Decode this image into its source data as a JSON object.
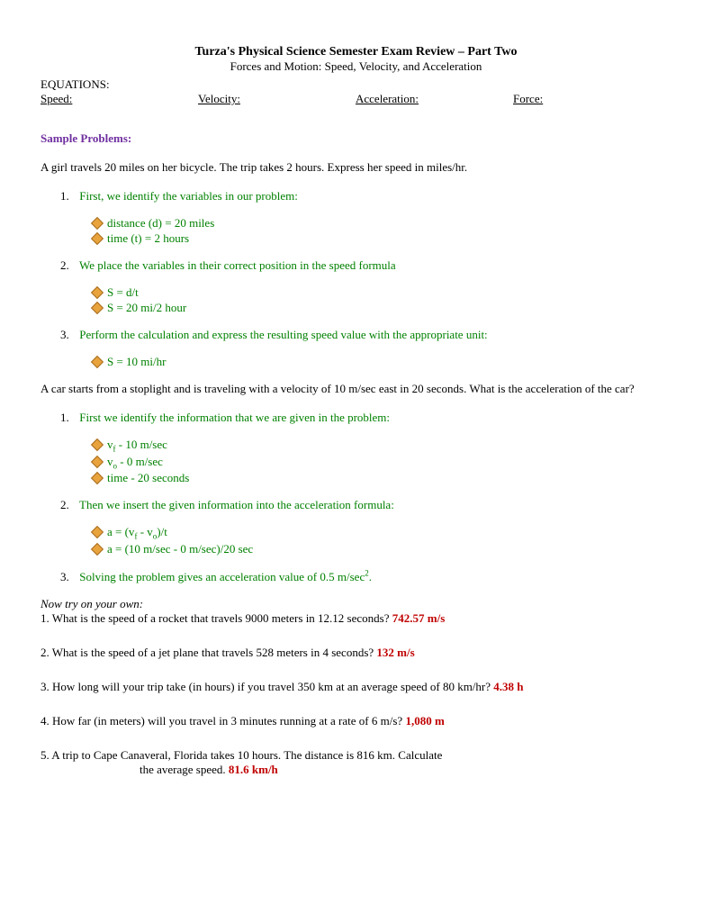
{
  "header": {
    "title": "Turza's Physical Science Semester Exam Review – Part Two",
    "subtitle": "Forces and Motion: Speed, Velocity, and Acceleration"
  },
  "equations": {
    "label": "EQUATIONS:",
    "cols": [
      "Speed:",
      "Velocity:",
      "Acceleration:",
      "Force:"
    ]
  },
  "sample_header": "Sample Problems:",
  "problem1": {
    "text": "A girl travels 20 miles on her bicycle. The trip takes 2 hours.  Express her speed in miles/hr.",
    "steps": [
      {
        "num": "1.",
        "text": "First, we identify the variables in our problem:",
        "bullets": [
          "distance (d) = 20 miles",
          "time (t) = 2 hours"
        ]
      },
      {
        "num": "2.",
        "text": "We place the variables in their correct position in the speed formula",
        "bullets": [
          "S = d/t",
          "S = 20 mi/2 hour"
        ]
      },
      {
        "num": "3.",
        "text": "Perform the calculation and express the resulting speed value with the appropriate unit:",
        "bullets": [
          "S = 10 mi/hr"
        ]
      }
    ]
  },
  "problem2": {
    "text": "A car starts from a stoplight and is traveling with a velocity of 10 m/sec east in 20 seconds.  What is the acceleration of the car?",
    "steps": [
      {
        "num": "1.",
        "text": "First we identify the information that we are given in the problem:",
        "bullets_html": [
          "v<sub>f</sub> - 10 m/sec",
          "v<sub>o</sub> - 0 m/sec",
          "time - 20 seconds"
        ]
      },
      {
        "num": "2.",
        "text": "Then we insert the given information into the acceleration formula:",
        "bullets_html": [
          "a = (v<sub>f</sub> - v<sub>o</sub>)/t",
          "a = (10 m/sec - 0 m/sec)/20 sec"
        ]
      },
      {
        "num": "3.",
        "text_html": "Solving the problem gives an acceleration value of 0.5 m/sec<sup>2</sup>.",
        "bullets_html": []
      }
    ]
  },
  "try_header": "Now try on your own:",
  "practice": [
    {
      "q": "1. What is the speed of a rocket that travels 9000 meters in 12.12 seconds? ",
      "a": "742.57 m/s"
    },
    {
      "q": "2. What is the speed of a jet plane that travels 528 meters in 4 seconds? ",
      "a": "132 m/s"
    },
    {
      "q": "3. How long will your trip take (in hours) if you travel 350 km at an average speed of 80 km/hr? ",
      "a": "4.38 h"
    },
    {
      "q": "4. How far (in meters) will you travel in 3 minutes running at a rate of 6 m/s? ",
      "a": "1,080 m"
    }
  ],
  "practice5": {
    "q": "5. A trip to Cape Canaveral, Florida takes 10 hours. The distance is 816 km. Calculate",
    "q2": "the average speed. ",
    "a": "81.6 km/h"
  }
}
